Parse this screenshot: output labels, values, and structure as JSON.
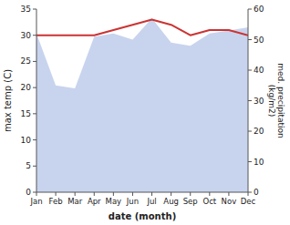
{
  "chart_data": {
    "type": "line",
    "categories": [
      "Jan",
      "Feb",
      "Mar",
      "Apr",
      "May",
      "Jun",
      "Jul",
      "Aug",
      "Sep",
      "Oct",
      "Nov",
      "Dec"
    ],
    "xlabel": "date (month)",
    "ylabel": "max temp (C)",
    "y2label": "med. precipitation\n(kg/m2)",
    "series": [
      {
        "type": "area",
        "axis": "y2",
        "color": "#c8d4ee",
        "values": [
          52,
          35,
          34,
          51,
          52,
          50,
          57,
          49,
          48,
          52,
          53,
          54
        ]
      },
      {
        "type": "line",
        "color": "#cc3333",
        "values": [
          30.0,
          30.0,
          30.0,
          30.0,
          31.0,
          32.0,
          33.0,
          32.0,
          30.0,
          31.0,
          31.0,
          30.0
        ]
      }
    ],
    "ylim": [
      0,
      35
    ],
    "yticks": [
      0,
      5,
      10,
      15,
      20,
      25,
      30,
      35
    ],
    "y2lim": [
      0,
      60
    ],
    "y2ticks": [
      0,
      10,
      20,
      30,
      40,
      50,
      60
    ],
    "grid": false
  }
}
